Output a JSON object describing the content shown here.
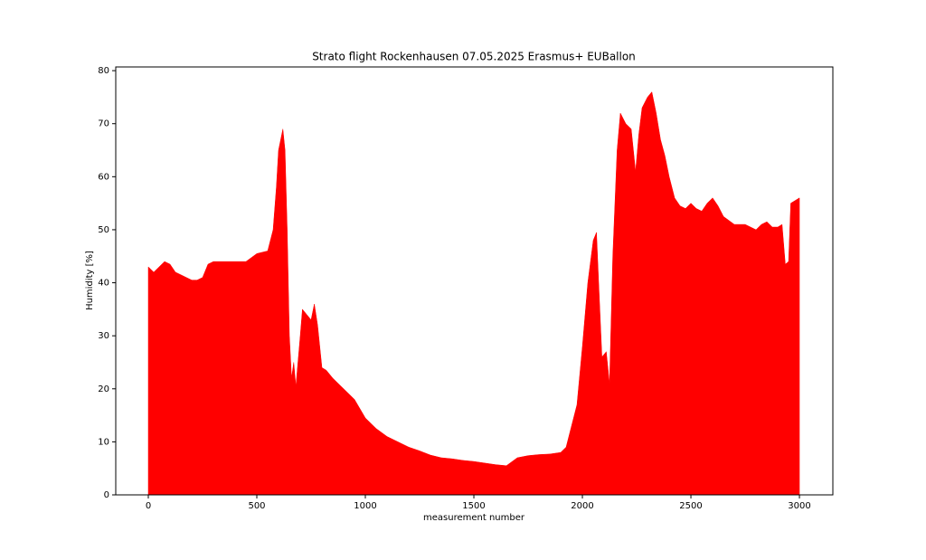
{
  "chart_data": {
    "type": "area",
    "title": "Strato flight Rockenhausen 07.05.2025 Erasmus+ EUBallon",
    "xlabel": "measurement number",
    "ylabel": "Humidity [%]",
    "color": "#ff0000",
    "grid": false,
    "x": [
      0,
      25,
      50,
      75,
      100,
      125,
      150,
      175,
      200,
      225,
      250,
      275,
      300,
      350,
      400,
      450,
      500,
      550,
      575,
      590,
      600,
      620,
      630,
      640,
      650,
      660,
      670,
      680,
      700,
      710,
      730,
      750,
      765,
      780,
      800,
      820,
      850,
      900,
      950,
      1000,
      1050,
      1100,
      1150,
      1200,
      1250,
      1300,
      1350,
      1400,
      1450,
      1500,
      1550,
      1600,
      1650,
      1700,
      1750,
      1800,
      1850,
      1900,
      1925,
      1950,
      1975,
      2000,
      2025,
      2050,
      2065,
      2075,
      2090,
      2110,
      2125,
      2140,
      2160,
      2175,
      2200,
      2225,
      2245,
      2260,
      2275,
      2300,
      2320,
      2340,
      2360,
      2380,
      2400,
      2425,
      2450,
      2475,
      2500,
      2525,
      2550,
      2575,
      2600,
      2625,
      2650,
      2700,
      2750,
      2800,
      2825,
      2850,
      2875,
      2900,
      2920,
      2935,
      2950,
      2960,
      3000
    ],
    "values": [
      43,
      42,
      43,
      44,
      43.5,
      42,
      41.5,
      41,
      40.5,
      40.5,
      41,
      43.5,
      44,
      44,
      44,
      44,
      45.5,
      46,
      50,
      58,
      65,
      69,
      65,
      50,
      30,
      22,
      25,
      20.5,
      30,
      35,
      34,
      33,
      36,
      32,
      24,
      23.5,
      22,
      20,
      18,
      14.5,
      12.5,
      11,
      10,
      9,
      8.3,
      7.5,
      7,
      6.8,
      6.5,
      6.3,
      6,
      5.7,
      5.5,
      7,
      7.4,
      7.6,
      7.7,
      8,
      9,
      13,
      17,
      28,
      40,
      48,
      49.5,
      40,
      26,
      27,
      21,
      45,
      65,
      72,
      70,
      69,
      61,
      68,
      73,
      75,
      76,
      72,
      67,
      64,
      60,
      56,
      54.5,
      54,
      55,
      54,
      53.5,
      55,
      56,
      54.5,
      52.5,
      51,
      51,
      50,
      51,
      51.5,
      50.5,
      50.5,
      51,
      43.5,
      44,
      55,
      56
    ],
    "xlim": [
      -150,
      3154
    ],
    "ylim": [
      0,
      80.7
    ],
    "xticks": [
      0,
      500,
      1000,
      1500,
      2000,
      2500,
      3000
    ],
    "yticks": [
      0,
      10,
      20,
      30,
      40,
      50,
      60,
      70,
      80
    ]
  }
}
